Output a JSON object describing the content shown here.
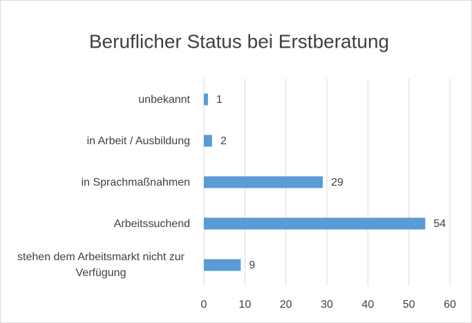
{
  "chart_data": {
    "type": "bar",
    "orientation": "horizontal",
    "title": "Beruflicher Status bei Erstberatung",
    "categories": [
      "unbekannt",
      "in Arbeit / Ausbildung",
      "in Sprachmaßnahmen",
      "Arbeitssuchend",
      "stehen dem Arbeitsmarkt nicht zur Verfügung"
    ],
    "values": [
      1,
      2,
      29,
      54,
      9
    ],
    "color": "#5b9bd5",
    "xlim": [
      0,
      60
    ],
    "xticks": [
      0,
      10,
      20,
      30,
      40,
      50,
      60
    ],
    "grid": true
  }
}
